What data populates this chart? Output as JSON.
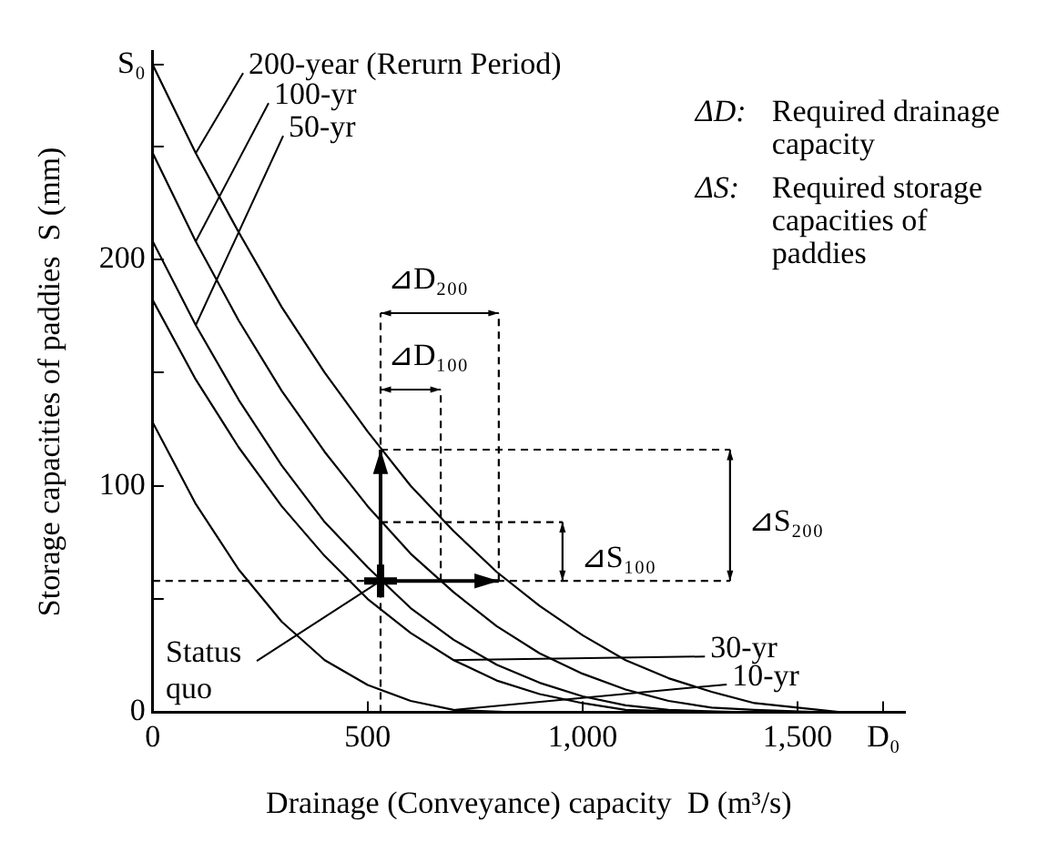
{
  "chart_data": {
    "type": "line",
    "xlabel": "Drainage (Conveyance) capacity  D (m³/s)",
    "ylabel": "Storage capacities of paddies  S (mm)",
    "xlim": [
      0,
      1750
    ],
    "xticks": [
      0,
      500,
      {
        "value": 1000,
        "label": "1,000"
      },
      {
        "value": 1500,
        "label": "1,500"
      },
      {
        "value": 1700,
        "label": "D₀"
      }
    ],
    "ylim": [
      0,
      292
    ],
    "yticks": [
      0,
      {
        "value": 50,
        "label": null
      },
      100,
      {
        "value": 150,
        "label": null
      },
      200,
      {
        "value": 250,
        "label": null
      },
      {
        "value": 286,
        "label": "S₀"
      }
    ],
    "grid": false,
    "line_style": "solid",
    "series": [
      {
        "name": "200-year (Rerurn Period)",
        "color": "#000000",
        "x": [
          0,
          100,
          200,
          300,
          400,
          500,
          600,
          700,
          800,
          900,
          1000,
          1100,
          1200,
          1300,
          1400,
          1500,
          1600,
          1700
        ],
        "values": [
          286,
          247,
          212,
          179,
          150,
          124,
          100,
          80,
          62,
          47,
          34,
          23,
          15,
          9,
          4,
          2,
          0,
          0
        ]
      },
      {
        "name": "100-yr",
        "color": "#000000",
        "x": [
          0,
          100,
          200,
          300,
          400,
          500,
          600,
          700,
          800,
          900,
          1000,
          1100,
          1200,
          1300,
          1400,
          1550
        ],
        "values": [
          247,
          208,
          173,
          142,
          115,
          91,
          70,
          53,
          38,
          26,
          17,
          10,
          5,
          2,
          1,
          0
        ]
      },
      {
        "name": "50-yr",
        "color": "#000000",
        "x": [
          0,
          100,
          200,
          300,
          400,
          500,
          600,
          700,
          800,
          900,
          1000,
          1100,
          1200,
          1366
        ],
        "values": [
          208,
          171,
          138,
          109,
          84,
          64,
          46,
          32,
          21,
          13,
          7,
          3,
          1,
          0
        ]
      },
      {
        "name": "30-yr",
        "color": "#000000",
        "x": [
          0,
          100,
          200,
          300,
          400,
          500,
          600,
          700,
          800,
          900,
          1000,
          1100,
          1284
        ],
        "values": [
          182,
          147,
          117,
          91,
          69,
          50,
          35,
          23,
          14,
          8,
          4,
          1,
          0
        ]
      },
      {
        "name": "10-yr",
        "color": "#000000",
        "x": [
          0,
          100,
          200,
          300,
          400,
          500,
          600,
          700,
          832
        ],
        "values": [
          128,
          92,
          63,
          40,
          23,
          12,
          5,
          1,
          0
        ]
      },
      {
        "type": "scatter",
        "marker": "cross",
        "color": "#000000",
        "x": [
          530
        ],
        "values": [
          58
        ]
      }
    ],
    "ref_lines": [
      {
        "axis": "x",
        "value": 530,
        "color": "#000000",
        "line_style": "dashed"
      },
      {
        "axis": "x",
        "value": 670,
        "color": "#000000",
        "line_style": "dashed"
      },
      {
        "axis": "x",
        "value": 805,
        "color": "#000000",
        "line_style": "dashed"
      },
      {
        "axis": "y",
        "value": 58,
        "color": "#000000",
        "line_style": "dashed"
      },
      {
        "axis": "y",
        "value": 84,
        "color": "#000000",
        "line_style": "dashed"
      },
      {
        "axis": "y",
        "value": 116,
        "color": "#000000",
        "line_style": "dashed"
      }
    ],
    "annotations": [
      "ΔD: Required drainage capacity",
      "ΔS: Required storage capacities of paddies",
      "⊿D₂₀₀",
      "⊿D₁₀₀",
      "⊿S₂₀₀",
      "⊿S₁₀₀",
      {
        "text": "Status quo",
        "x": 530,
        "y": 58
      }
    ]
  }
}
